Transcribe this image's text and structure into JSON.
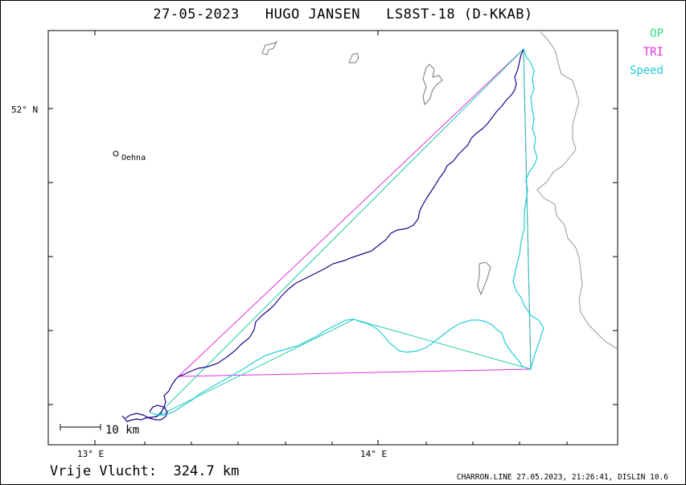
{
  "title": "27-05-2023   HUGO JANSEN   LS8ST-18 (D-KKAB)",
  "legend": [
    {
      "label": "OP",
      "color": "#33dd88"
    },
    {
      "label": "TRI",
      "color": "#dd33dd"
    },
    {
      "label": "Speed",
      "color": "#22ccdd"
    }
  ],
  "axes": {
    "lat_label": "52° N",
    "lon_labels": [
      "13° E",
      "14° E"
    ]
  },
  "town": {
    "name": "Oehna"
  },
  "scale_bar": {
    "label": "10 km"
  },
  "footer": {
    "distance": "Vrije Vlucht:  324.7 km",
    "credit": "CHARRON.LINE 27.05.2023, 21:26:41, DISLIN 10.6"
  },
  "colors": {
    "track": "#220088",
    "speed_track": "#22ccdd",
    "op": "#33dd88",
    "tri": "#dd33dd",
    "border": "#999999",
    "lake": "#777777"
  }
}
